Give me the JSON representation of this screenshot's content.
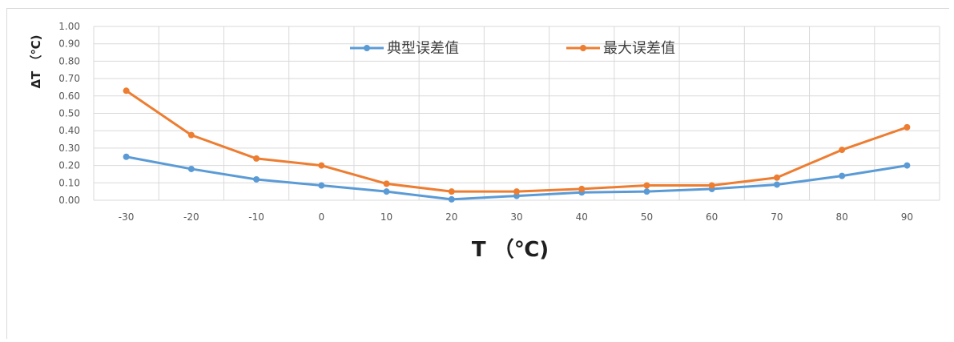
{
  "chart_data": {
    "type": "line",
    "title": "",
    "xlabel": "T （℃)",
    "ylabel": "ΔT （℃)",
    "categories": [
      "-30",
      "-20",
      "-10",
      "0",
      "10",
      "20",
      "30",
      "40",
      "50",
      "60",
      "70",
      "80",
      "90"
    ],
    "ylim": [
      0,
      1.0
    ],
    "yticks": [
      "0.00",
      "0.10",
      "0.20",
      "0.30",
      "0.40",
      "0.50",
      "0.60",
      "0.70",
      "0.80",
      "0.90",
      "1.00"
    ],
    "grid": true,
    "legend_position": "top",
    "series": [
      {
        "name": "典型误差值",
        "color": "#5b9bd5",
        "values": [
          0.25,
          0.18,
          0.12,
          0.085,
          0.05,
          0.005,
          0.025,
          0.045,
          0.05,
          0.065,
          0.09,
          0.14,
          0.2
        ]
      },
      {
        "name": "最大误差值",
        "color": "#ed7d31",
        "values": [
          0.63,
          0.375,
          0.24,
          0.2,
          0.095,
          0.05,
          0.05,
          0.065,
          0.085,
          0.085,
          0.13,
          0.29,
          0.42
        ]
      }
    ]
  }
}
